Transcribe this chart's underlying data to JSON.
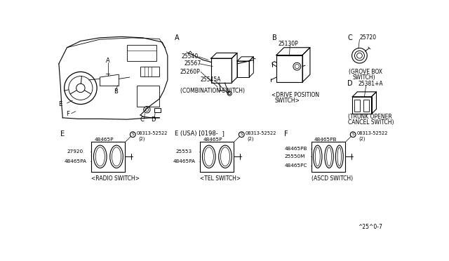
{
  "bg_color": "#ffffff",
  "fig_width": 6.4,
  "fig_height": 3.72,
  "dpi": 100,
  "footer": "^25^0-7",
  "sections": {
    "dashboard": {
      "label_A": "A",
      "label_B": "B",
      "label_E": "E",
      "label_F": "F",
      "label_C": "C",
      "label_D": "D"
    },
    "combination": {
      "letter": "A",
      "parts": [
        "25540",
        "25567",
        "25260P",
        "25545A"
      ],
      "caption": "(COMBINATION SWITCH)"
    },
    "drive_pos": {
      "letter": "B",
      "parts": [
        "25130P"
      ],
      "caption": "<DRIVE POSITION\n  SWITCH>"
    },
    "grove_box": {
      "letter": "C",
      "parts": [
        "25720"
      ],
      "caption": "(GROVE BOX\n SWITCH)"
    },
    "trunk": {
      "letter": "D",
      "parts": [
        "25381+A"
      ],
      "caption": "(TRUNK OPENER\nCANCEL SWITCH)"
    },
    "radio": {
      "letter": "E",
      "screw": "08313-52522",
      "screw_qty": "(2)",
      "top_part": "48465P",
      "left_part1": "27920",
      "left_part2": "48465PA",
      "caption": "<RADIO SWITCH>"
    },
    "tel": {
      "letter": "E (USA) [0198-  ]",
      "screw": "08313-52522",
      "screw_qty": "(2)",
      "top_part": "48465P",
      "left_part1": "25553",
      "left_part2": "48465PA",
      "caption": "<TEL SWITCH>"
    },
    "ascd": {
      "letter": "F",
      "screw": "08313-52522",
      "screw_qty": "(2)",
      "top_part": "48465PB",
      "left_part1_label": "48465PB",
      "left_part2_label": "25550M",
      "left_part3_label": "48465PC",
      "caption": "(ASCD SWITCH)"
    }
  }
}
